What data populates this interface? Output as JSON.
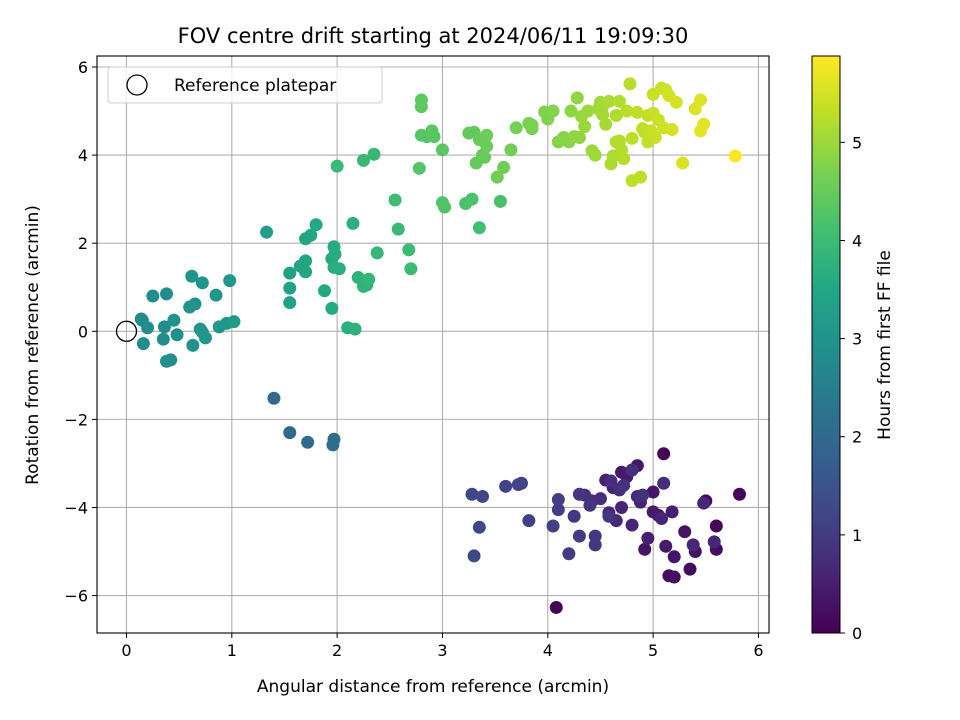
{
  "chart_data": {
    "type": "scatter",
    "title": "FOV centre drift starting at 2024/06/11 19:09:30",
    "xlabel": "Angular distance from reference (arcmin)",
    "ylabel": "Rotation from reference (arcmin)",
    "xlim": [
      -0.28,
      6.1
    ],
    "ylim": [
      -6.85,
      6.25
    ],
    "xticks": [
      0,
      1,
      2,
      3,
      4,
      5,
      6
    ],
    "yticks": [
      -6,
      -4,
      -2,
      0,
      2,
      4,
      6
    ],
    "xtick_labels": [
      "0",
      "1",
      "2",
      "3",
      "4",
      "5",
      "6"
    ],
    "ytick_labels": [
      "−6",
      "−4",
      "−2",
      "0",
      "2",
      "4",
      "6"
    ],
    "grid": true,
    "legend_position": "top-left",
    "reference": {
      "name": "Reference platepar",
      "x": 0,
      "y": 0
    },
    "colorbar": {
      "label": "Hours from first FF file",
      "colormap": "viridis",
      "range": [
        0,
        5.88
      ],
      "ticks": [
        0,
        1,
        2,
        3,
        4,
        5
      ],
      "tick_labels": [
        "0",
        "1",
        "2",
        "3",
        "4",
        "5"
      ]
    },
    "series": [
      {
        "points": [
          [
            4.08,
            -6.27,
            0.05
          ],
          [
            5.1,
            -2.78,
            0.05
          ],
          [
            5.82,
            -3.7,
            0.1
          ],
          [
            5.6,
            -4.42,
            0.12
          ],
          [
            5.5,
            -3.85,
            0.15
          ],
          [
            5.35,
            -5.4,
            0.18
          ],
          [
            5.15,
            -5.55,
            0.22
          ],
          [
            5.6,
            -4.95,
            0.2
          ],
          [
            5.4,
            -5.0,
            0.25
          ],
          [
            5.3,
            -4.55,
            0.28
          ],
          [
            4.92,
            -4.95,
            0.3
          ],
          [
            5.2,
            -5.12,
            0.32
          ],
          [
            5.0,
            -3.65,
            0.35
          ],
          [
            4.85,
            -3.05,
            0.38
          ],
          [
            4.7,
            -3.2,
            0.4
          ],
          [
            4.75,
            -3.3,
            0.42
          ],
          [
            5.0,
            -4.1,
            0.45
          ],
          [
            5.12,
            -4.88,
            0.45
          ],
          [
            5.18,
            -4.1,
            0.48
          ],
          [
            4.95,
            -4.7,
            0.5
          ],
          [
            4.55,
            -3.38,
            0.52
          ],
          [
            4.88,
            -3.88,
            0.55
          ],
          [
            4.62,
            -3.55,
            0.55
          ],
          [
            4.7,
            -4.0,
            0.58
          ],
          [
            4.8,
            -4.4,
            0.6
          ],
          [
            4.58,
            -4.12,
            0.6
          ],
          [
            5.38,
            -4.85,
            0.62
          ],
          [
            5.08,
            -4.25,
            0.62
          ],
          [
            5.48,
            -3.9,
            0.65
          ],
          [
            5.58,
            -4.78,
            0.65
          ],
          [
            4.65,
            -4.3,
            0.68
          ],
          [
            4.85,
            -3.75,
            0.7
          ],
          [
            4.42,
            -3.85,
            0.72
          ],
          [
            4.5,
            -3.8,
            0.75
          ],
          [
            5.1,
            -3.45,
            0.75
          ],
          [
            4.6,
            -3.4,
            0.78
          ],
          [
            4.68,
            -3.6,
            0.78
          ],
          [
            4.8,
            -3.15,
            0.8
          ],
          [
            4.72,
            -3.5,
            0.82
          ],
          [
            4.9,
            -3.72,
            0.85
          ],
          [
            5.2,
            -5.58,
            0.2
          ],
          [
            5.05,
            -4.18,
            0.3
          ],
          [
            4.35,
            -3.72,
            0.85
          ],
          [
            4.3,
            -3.7,
            0.88
          ],
          [
            4.4,
            -3.95,
            0.9
          ],
          [
            4.58,
            -4.2,
            0.9
          ],
          [
            4.25,
            -4.2,
            0.95
          ],
          [
            4.45,
            -4.65,
            0.95
          ],
          [
            4.45,
            -4.85,
            0.98
          ],
          [
            4.2,
            -5.05,
            1.0
          ],
          [
            4.3,
            -4.65,
            1.02
          ],
          [
            4.1,
            -4.05,
            1.05
          ],
          [
            4.1,
            -3.82,
            1.05
          ],
          [
            4.05,
            -4.42,
            1.08
          ],
          [
            3.82,
            -4.3,
            1.1
          ],
          [
            3.75,
            -3.45,
            1.15
          ],
          [
            3.6,
            -3.52,
            1.18
          ],
          [
            3.72,
            -3.48,
            1.2
          ],
          [
            3.38,
            -3.75,
            1.22
          ],
          [
            3.28,
            -3.7,
            1.25
          ],
          [
            3.35,
            -4.45,
            1.28
          ],
          [
            3.3,
            -5.1,
            1.3
          ],
          [
            1.4,
            -1.52,
            2.0
          ],
          [
            1.55,
            -2.3,
            2.02
          ],
          [
            1.72,
            -2.52,
            2.05
          ],
          [
            1.97,
            -2.45,
            2.08
          ],
          [
            1.96,
            -2.58,
            2.1
          ],
          [
            0.15,
            0.25,
            2.8
          ],
          [
            0.2,
            0.08,
            2.82
          ],
          [
            0.16,
            -0.28,
            2.82
          ],
          [
            0.25,
            0.8,
            2.85
          ],
          [
            0.38,
            0.85,
            2.85
          ],
          [
            0.35,
            -0.18,
            2.88
          ],
          [
            0.36,
            0.1,
            2.9
          ],
          [
            0.42,
            -0.65,
            2.9
          ],
          [
            0.38,
            -0.68,
            2.92
          ],
          [
            0.48,
            -0.08,
            2.95
          ],
          [
            0.45,
            0.25,
            2.95
          ],
          [
            0.63,
            -0.32,
            2.98
          ],
          [
            0.6,
            0.55,
            3.0
          ],
          [
            0.65,
            0.62,
            3.0
          ],
          [
            0.62,
            1.25,
            3.02
          ],
          [
            0.72,
            1.1,
            3.05
          ],
          [
            0.7,
            0.05,
            3.05
          ],
          [
            0.75,
            -0.15,
            3.08
          ],
          [
            0.72,
            -0.02,
            3.08
          ],
          [
            0.85,
            0.82,
            3.1
          ],
          [
            0.88,
            0.1,
            3.12
          ],
          [
            0.95,
            0.18,
            3.15
          ],
          [
            0.98,
            1.15,
            3.15
          ],
          [
            1.02,
            0.22,
            3.18
          ],
          [
            0.14,
            0.28,
            2.8
          ],
          [
            1.33,
            2.25,
            3.3
          ],
          [
            1.55,
            1.32,
            3.35
          ],
          [
            1.55,
            0.98,
            3.38
          ],
          [
            1.55,
            0.65,
            3.4
          ],
          [
            1.65,
            1.48,
            3.42
          ],
          [
            1.7,
            1.6,
            3.45
          ],
          [
            1.7,
            1.35,
            3.45
          ],
          [
            1.7,
            2.1,
            3.48
          ],
          [
            1.75,
            2.18,
            3.5
          ],
          [
            1.8,
            2.42,
            3.52
          ],
          [
            1.88,
            0.92,
            3.55
          ],
          [
            1.95,
            0.52,
            3.58
          ],
          [
            1.95,
            1.65,
            3.58
          ],
          [
            1.97,
            1.92,
            3.6
          ],
          [
            1.98,
            1.75,
            3.62
          ],
          [
            1.97,
            1.45,
            3.65
          ],
          [
            2.02,
            1.42,
            3.68
          ],
          [
            2.1,
            0.08,
            3.7
          ],
          [
            2.15,
            2.45,
            3.72
          ],
          [
            2.17,
            0.05,
            3.75
          ],
          [
            2.2,
            1.22,
            3.78
          ],
          [
            2.25,
            1.02,
            3.8
          ],
          [
            2.28,
            1.05,
            3.82
          ],
          [
            2.3,
            1.18,
            3.85
          ],
          [
            2.38,
            1.78,
            3.88
          ],
          [
            2.25,
            3.88,
            3.9
          ],
          [
            2.35,
            4.02,
            3.92
          ],
          [
            2.0,
            3.75,
            3.95
          ],
          [
            2.58,
            2.32,
            3.95
          ],
          [
            2.68,
            1.85,
            4.0
          ],
          [
            2.7,
            1.42,
            4.02
          ],
          [
            2.55,
            2.98,
            4.05
          ],
          [
            3.35,
            2.35,
            4.1
          ],
          [
            3.55,
            2.95,
            4.15
          ],
          [
            3.22,
            2.9,
            4.18
          ],
          [
            3.28,
            3.0,
            4.2
          ],
          [
            3.0,
            2.92,
            4.22
          ],
          [
            3.02,
            2.82,
            4.25
          ],
          [
            2.78,
            3.7,
            4.28
          ],
          [
            2.8,
            4.45,
            4.3
          ],
          [
            2.85,
            4.42,
            4.32
          ],
          [
            2.9,
            4.55,
            4.35
          ],
          [
            2.92,
            4.42,
            4.35
          ],
          [
            3.0,
            4.12,
            4.38
          ],
          [
            2.8,
            5.25,
            4.4
          ],
          [
            2.8,
            5.1,
            4.42
          ],
          [
            3.25,
            4.5,
            4.45
          ],
          [
            3.3,
            4.52,
            4.45
          ],
          [
            3.32,
            3.82,
            4.48
          ],
          [
            3.38,
            4.0,
            4.5
          ],
          [
            3.4,
            3.95,
            4.5
          ],
          [
            3.35,
            4.35,
            4.52
          ],
          [
            3.42,
            4.45,
            4.55
          ],
          [
            3.42,
            4.2,
            4.55
          ],
          [
            3.52,
            3.5,
            4.58
          ],
          [
            3.58,
            3.72,
            4.6
          ],
          [
            3.65,
            4.12,
            4.62
          ],
          [
            3.7,
            4.62,
            4.65
          ],
          [
            3.85,
            4.6,
            4.68
          ],
          [
            3.82,
            4.72,
            4.7
          ],
          [
            3.97,
            4.98,
            4.72
          ],
          [
            4.0,
            4.82,
            4.75
          ],
          [
            4.05,
            5.0,
            4.78
          ],
          [
            4.1,
            4.3,
            4.8
          ],
          [
            4.15,
            4.4,
            4.82
          ],
          [
            4.2,
            4.3,
            4.85
          ],
          [
            4.22,
            5.0,
            4.88
          ],
          [
            4.25,
            4.42,
            4.9
          ],
          [
            4.28,
            5.3,
            4.92
          ],
          [
            4.32,
            4.88,
            4.95
          ],
          [
            4.35,
            4.65,
            4.98
          ],
          [
            4.38,
            5.0,
            5.0
          ],
          [
            4.42,
            4.1,
            5.0
          ],
          [
            4.45,
            4.0,
            5.02
          ],
          [
            4.48,
            5.05,
            5.05
          ],
          [
            4.5,
            5.2,
            5.05
          ],
          [
            4.52,
            4.92,
            5.08
          ],
          [
            4.55,
            4.7,
            5.1
          ],
          [
            4.58,
            5.22,
            5.12
          ],
          [
            4.6,
            3.8,
            5.12
          ],
          [
            4.62,
            3.98,
            5.15
          ],
          [
            4.65,
            4.9,
            5.15
          ],
          [
            4.68,
            5.22,
            5.18
          ],
          [
            4.68,
            4.32,
            5.2
          ],
          [
            4.7,
            4.12,
            5.2
          ],
          [
            4.72,
            3.92,
            5.22
          ],
          [
            4.75,
            5.0,
            5.25
          ],
          [
            4.78,
            5.62,
            5.25
          ],
          [
            4.8,
            4.38,
            5.28
          ],
          [
            4.8,
            3.42,
            5.28
          ],
          [
            4.85,
            4.97,
            5.3
          ],
          [
            4.88,
            3.5,
            5.3
          ],
          [
            4.9,
            4.6,
            5.32
          ],
          [
            4.92,
            4.52,
            5.32
          ],
          [
            4.95,
            4.3,
            5.35
          ],
          [
            4.95,
            4.9,
            5.35
          ],
          [
            4.98,
            4.55,
            5.38
          ],
          [
            5.0,
            5.38,
            5.38
          ],
          [
            5.02,
            4.4,
            5.4
          ],
          [
            5.05,
            4.8,
            5.42
          ],
          [
            5.08,
            5.52,
            5.42
          ],
          [
            5.1,
            4.62,
            5.45
          ],
          [
            5.12,
            5.48,
            5.45
          ],
          [
            5.15,
            5.35,
            5.48
          ],
          [
            5.18,
            4.58,
            5.5
          ],
          [
            5.22,
            5.2,
            5.52
          ],
          [
            5.28,
            3.82,
            5.55
          ],
          [
            5.4,
            5.05,
            5.58
          ],
          [
            5.45,
            5.25,
            5.6
          ],
          [
            5.48,
            4.7,
            5.62
          ],
          [
            5.45,
            4.55,
            5.65
          ],
          [
            5.78,
            3.98,
            5.88
          ],
          [
            4.3,
            4.4,
            4.88
          ],
          [
            4.65,
            4.3,
            5.18
          ],
          [
            5.0,
            4.95,
            5.38
          ],
          [
            3.85,
            4.68,
            4.7
          ],
          [
            4.52,
            5.1,
            5.08
          ]
        ]
      }
    ]
  }
}
